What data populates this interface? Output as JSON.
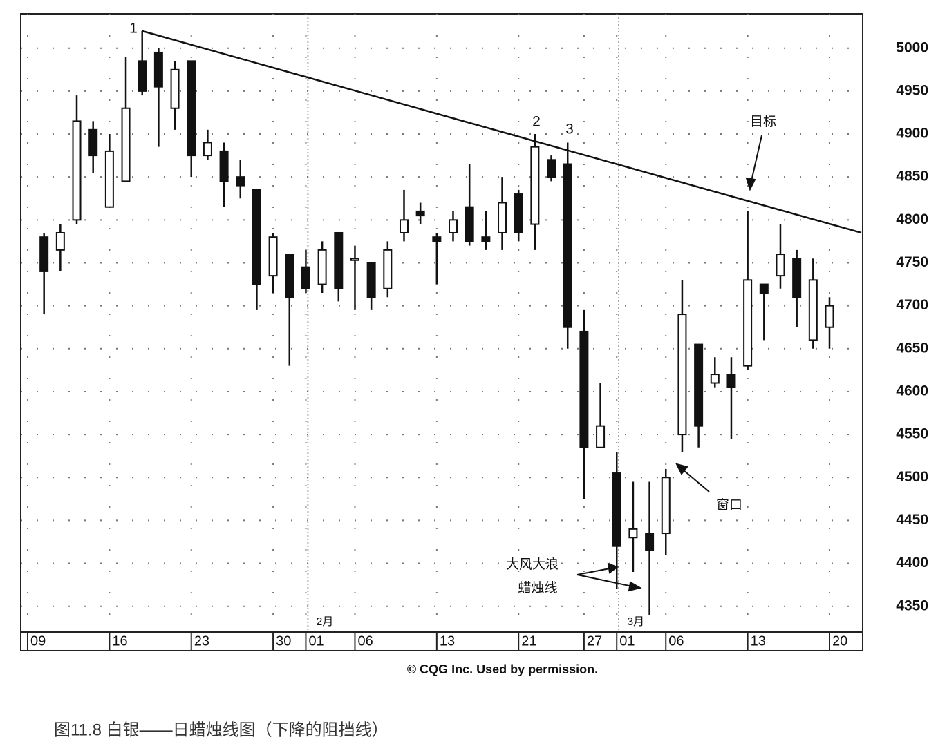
{
  "chart_data": {
    "type": "candlestick",
    "categories": [
      "09",
      null,
      null,
      null,
      null,
      "16",
      null,
      null,
      null,
      null,
      "23",
      null,
      null,
      null,
      null,
      "30",
      null,
      "01",
      null,
      null,
      "06",
      null,
      null,
      null,
      null,
      "13",
      null,
      null,
      null,
      null,
      "21",
      null,
      null,
      null,
      "27",
      null,
      "01",
      null,
      null,
      "06",
      null,
      null,
      null,
      null,
      "13",
      null,
      null,
      null,
      null,
      "20"
    ],
    "open": [
      null,
      4780,
      4765,
      4800,
      4905,
      4815,
      4845,
      4985,
      4995,
      4930,
      4985,
      4875,
      4880,
      4850,
      4835,
      4735,
      4760,
      4745,
      4725,
      4785,
      4755,
      4750,
      4720,
      4785,
      4810,
      4780,
      4785,
      4815,
      4780,
      4785,
      4830,
      4795,
      4870,
      4865,
      4670,
      4535,
      4505,
      4430,
      4435,
      4435,
      4550,
      4655,
      4610,
      4620,
      4630,
      4725,
      4735,
      4755,
      4660,
      4675
    ],
    "high": [
      null,
      4785,
      4795,
      4945,
      4915,
      4900,
      4990,
      5020,
      5000,
      4985,
      4985,
      4905,
      4890,
      4870,
      4835,
      4785,
      4760,
      4765,
      4775,
      4785,
      4770,
      4750,
      4775,
      4835,
      4820,
      4785,
      4810,
      4865,
      4810,
      4850,
      4835,
      4900,
      4875,
      4890,
      4695,
      4610,
      4530,
      4495,
      4495,
      4510,
      4730,
      4655,
      4640,
      4640,
      4810,
      4725,
      4795,
      4765,
      4755,
      4710
    ],
    "low": [
      null,
      4690,
      4740,
      4795,
      4855,
      4815,
      4845,
      4945,
      4885,
      4905,
      4850,
      4870,
      4815,
      4825,
      4695,
      4715,
      4630,
      4715,
      4715,
      4705,
      4695,
      4695,
      4710,
      4775,
      4795,
      4725,
      4775,
      4770,
      4765,
      4765,
      4775,
      4765,
      4845,
      4650,
      4475,
      4535,
      4370,
      4390,
      4340,
      4410,
      4530,
      4535,
      4605,
      4545,
      4625,
      4660,
      4720,
      4675,
      4650,
      4650
    ],
    "close": [
      null,
      4740,
      4785,
      4915,
      4875,
      4880,
      4930,
      4950,
      4955,
      4975,
      4875,
      4890,
      4845,
      4840,
      4725,
      4780,
      4710,
      4720,
      4765,
      4720,
      4755,
      4710,
      4765,
      4800,
      4805,
      4775,
      4800,
      4775,
      4775,
      4820,
      4785,
      4885,
      4850,
      4675,
      4535,
      4560,
      4420,
      4440,
      4415,
      4500,
      4690,
      4560,
      4620,
      4605,
      4730,
      4715,
      4760,
      4710,
      4730,
      4700
    ],
    "ylim": [
      4320,
      5040
    ],
    "yticks": [
      4350,
      4400,
      4450,
      4500,
      4550,
      4600,
      4650,
      4700,
      4750,
      4800,
      4850,
      4900,
      4950,
      5000
    ],
    "grid": true,
    "month_labels": [
      "2月",
      "3月"
    ],
    "trend_line": [
      5020,
      4785
    ],
    "annotations": [
      "1",
      "2",
      "3",
      "目标",
      "窗口",
      "大风大浪",
      "蜡烛线"
    ],
    "source": "© CQG Inc. Used by permission.",
    "caption": "图11.8 白银——日蜡烛线图（下降的阻挡线）"
  }
}
